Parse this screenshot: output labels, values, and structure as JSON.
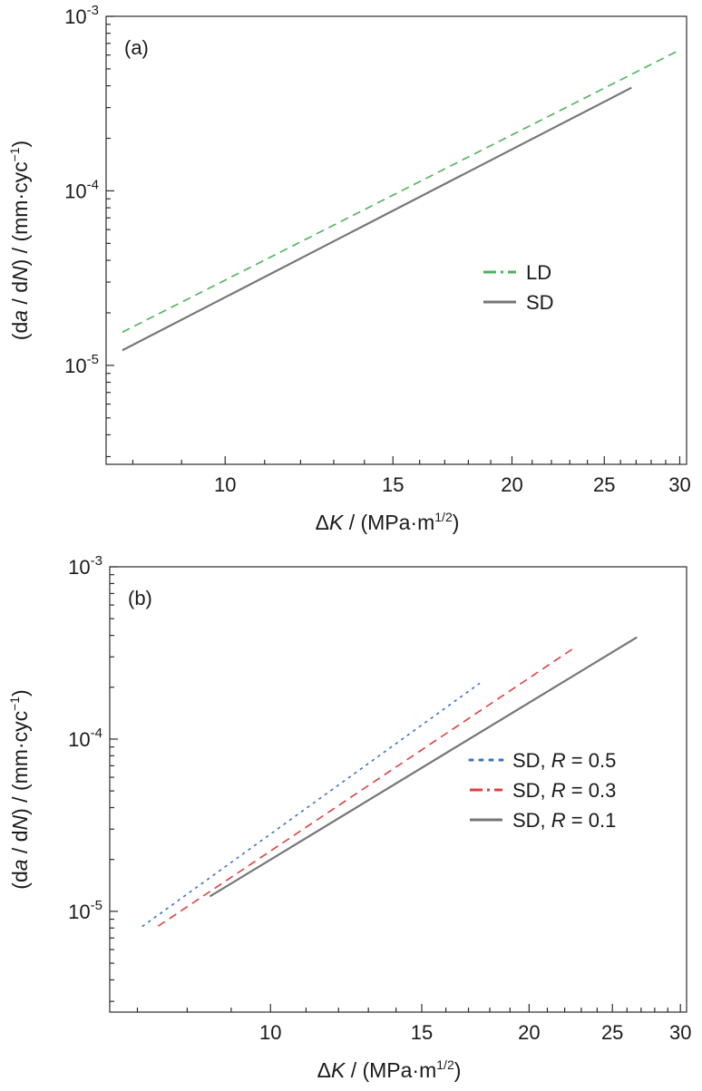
{
  "chart_data": [
    {
      "type": "line",
      "panel_label": "(a)",
      "xlabel": "ΔK / (MPa·m1/2)",
      "ylabel": "(da / dN) / (mm·cyc−1)",
      "x_scale": "log",
      "y_scale": "log",
      "xlim": [
        7.5,
        30.5
      ],
      "ylim": [
        2.71e-06,
        0.001
      ],
      "x_ticks": [
        10,
        15,
        20,
        25,
        30
      ],
      "x_tick_labels": [
        "10",
        "15",
        "20",
        "25",
        "30"
      ],
      "y_ticks": [
        1e-05,
        0.0001,
        0.001
      ],
      "y_tick_labels": [
        [
          "10",
          "-5"
        ],
        [
          "10",
          "-4"
        ],
        [
          "10",
          "-3"
        ]
      ],
      "legend_position": "center-right",
      "series": [
        {
          "name": "LD",
          "color": "#4db35a",
          "dash": "dash",
          "x": [
            7.8,
            29.8
          ],
          "y": [
            1.55e-05,
            0.00063
          ]
        },
        {
          "name": "SD",
          "color": "#767676",
          "dash": "solid",
          "x": [
            7.8,
            26.7
          ],
          "y": [
            1.22e-05,
            0.00039
          ]
        }
      ]
    },
    {
      "type": "line",
      "panel_label": "(b)",
      "xlabel": "ΔK / (MPa·m1/2)",
      "ylabel": "(da / dN) / (mm·cyc−1)",
      "x_scale": "log",
      "y_scale": "log",
      "xlim": [
        6.5,
        30.5
      ],
      "ylim": [
        2.6e-06,
        0.001
      ],
      "x_ticks": [
        10,
        15,
        20,
        25,
        30
      ],
      "x_tick_labels": [
        "10",
        "15",
        "20",
        "25",
        "30"
      ],
      "y_ticks": [
        1e-05,
        0.0001,
        0.001
      ],
      "y_tick_labels": [
        [
          "10",
          "-5"
        ],
        [
          "10",
          "-4"
        ],
        [
          "10",
          "-3"
        ]
      ],
      "legend_position": "lower-right",
      "series": [
        {
          "name": [
            "SD, ",
            "R",
            " = 0.5"
          ],
          "color": "#3d6fc4",
          "dash": "dot",
          "x": [
            7.1,
            17.5
          ],
          "y": [
            8.2e-06,
            0.00021
          ]
        },
        {
          "name": [
            "SD, ",
            "R",
            " = 0.3"
          ],
          "color": "#e04040",
          "dash": "dash",
          "x": [
            7.4,
            22.6
          ],
          "y": [
            8.2e-06,
            0.00034
          ]
        },
        {
          "name": [
            "SD, ",
            "R",
            " = 0.1"
          ],
          "color": "#767676",
          "dash": "solid",
          "x": [
            8.5,
            26.7
          ],
          "y": [
            1.22e-05,
            0.00039
          ]
        }
      ]
    }
  ]
}
